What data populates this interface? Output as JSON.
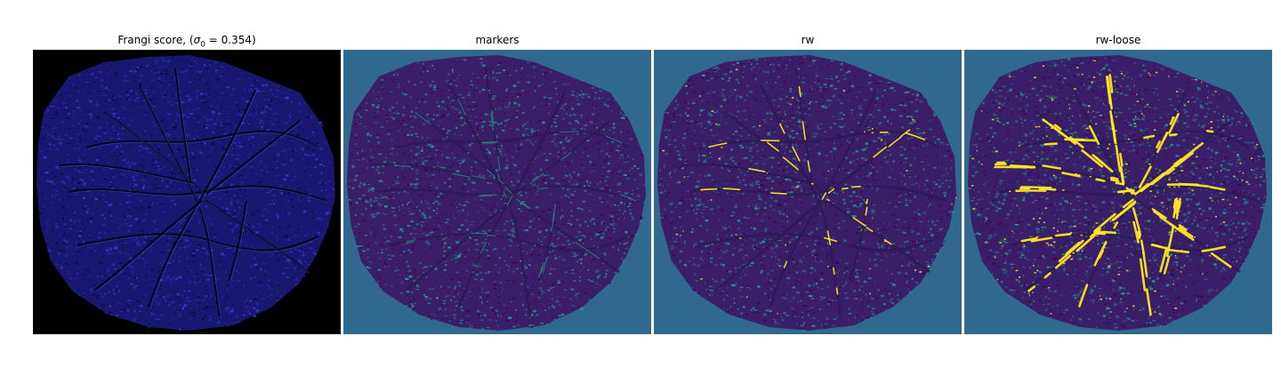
{
  "panels": [
    {
      "title_prefix": "Frangi score, (",
      "title_symbol": "σ",
      "title_subscript": "0",
      "title_value": " = 0.354)",
      "background": "#000000",
      "blob_color": "#181870",
      "speckle_colors": [
        "#2a2aa8",
        "#3a3adf",
        "#0b0b40"
      ],
      "vessel_color": "#05051a",
      "highlight_color": "#6a6aff",
      "style": "frangi"
    },
    {
      "title": "markers",
      "background": "#31688e",
      "blob_color": "#3b1e68",
      "speckle_colors": [
        "#440154",
        "#2b6f8a",
        "#23a083"
      ],
      "vessel_color": "#2e1a54",
      "highlight_color": "#2a9a86",
      "style": "markers"
    },
    {
      "title": "rw",
      "background": "#31688e",
      "blob_color": "#3b1e68",
      "speckle_colors": [
        "#440154",
        "#2b6f8a",
        "#23a083"
      ],
      "vessel_color": "#2e1a54",
      "highlight_color": "#fde725",
      "style": "rw"
    },
    {
      "title": "rw-loose",
      "background": "#31688e",
      "blob_color": "#3b1e68",
      "speckle_colors": [
        "#440154",
        "#2b6f8a",
        "#23a083"
      ],
      "vessel_color": "#2e1a54",
      "highlight_color": "#fde725",
      "style": "rwloose"
    }
  ]
}
